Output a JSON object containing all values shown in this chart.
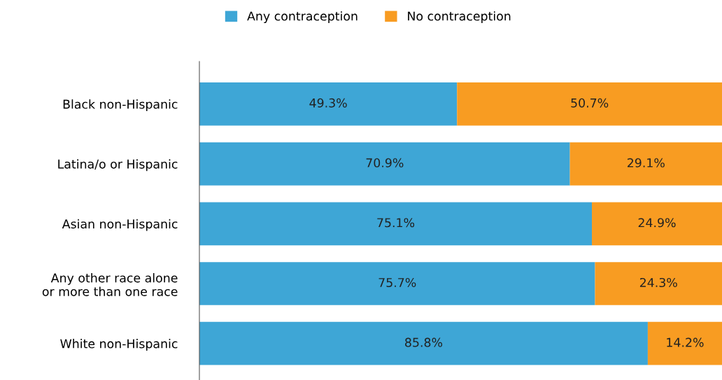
{
  "chart_data": {
    "type": "bar",
    "orientation": "horizontal",
    "stacked": true,
    "categories": [
      "Black non-Hispanic",
      "Latina/o or Hispanic",
      "Asian non-Hispanic",
      "Any other race alone\nor more than one race",
      "White non-Hispanic"
    ],
    "series": [
      {
        "name": "Any contraception",
        "color": "#3ea6d6",
        "values": [
          49.3,
          70.9,
          75.1,
          75.7,
          85.8
        ],
        "value_labels": [
          "49.3%",
          "70.9%",
          "75.1%",
          "75.7%",
          "85.8%"
        ]
      },
      {
        "name": "No contraception",
        "color": "#f89c22",
        "values": [
          50.7,
          29.1,
          24.9,
          24.3,
          14.2
        ],
        "value_labels": [
          "50.7%",
          "29.1%",
          "24.9%",
          "24.3%",
          "14.2%"
        ]
      }
    ],
    "xlim": [
      0,
      100
    ],
    "tick_labels": "y",
    "legend": "top",
    "grid": false
  }
}
